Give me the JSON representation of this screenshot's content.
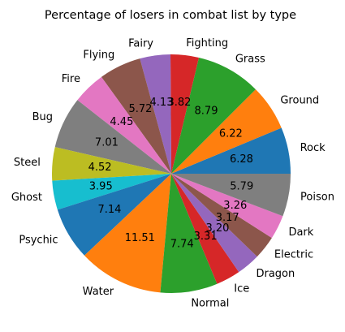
{
  "chart_data": {
    "type": "pie",
    "title": "Percentage of losers in combat list by type",
    "start_angle_deg": 0,
    "direction": "counterclockwise",
    "slices": [
      {
        "label": "Rock",
        "value": 6.28,
        "color": "#1f77b4"
      },
      {
        "label": "Ground",
        "value": 6.22,
        "color": "#ff7f0e"
      },
      {
        "label": "Grass",
        "value": 8.79,
        "color": "#2ca02c"
      },
      {
        "label": "Fighting",
        "value": 3.82,
        "color": "#d62728"
      },
      {
        "label": "Fairy",
        "value": 4.13,
        "color": "#9467bd"
      },
      {
        "label": "Flying",
        "value": 5.72,
        "color": "#8c564b"
      },
      {
        "label": "Fire",
        "value": 4.45,
        "color": "#e377c2"
      },
      {
        "label": "Bug",
        "value": 7.01,
        "color": "#7f7f7f"
      },
      {
        "label": "Steel",
        "value": 4.52,
        "color": "#bcbd22"
      },
      {
        "label": "Ghost",
        "value": 3.95,
        "color": "#17becf"
      },
      {
        "label": "Psychic",
        "value": 7.14,
        "color": "#1f77b4"
      },
      {
        "label": "Water",
        "value": 11.51,
        "color": "#ff7f0e"
      },
      {
        "label": "Normal",
        "value": 7.74,
        "color": "#2ca02c"
      },
      {
        "label": "Ice",
        "value": 3.31,
        "color": "#d62728"
      },
      {
        "label": "Dragon",
        "value": 3.2,
        "color": "#9467bd"
      },
      {
        "label": "Electric",
        "value": 3.17,
        "color": "#8c564b"
      },
      {
        "label": "Dark",
        "value": 3.26,
        "color": "#e377c2"
      },
      {
        "label": "Poison",
        "value": 5.79,
        "color": "#7f7f7f"
      }
    ]
  }
}
